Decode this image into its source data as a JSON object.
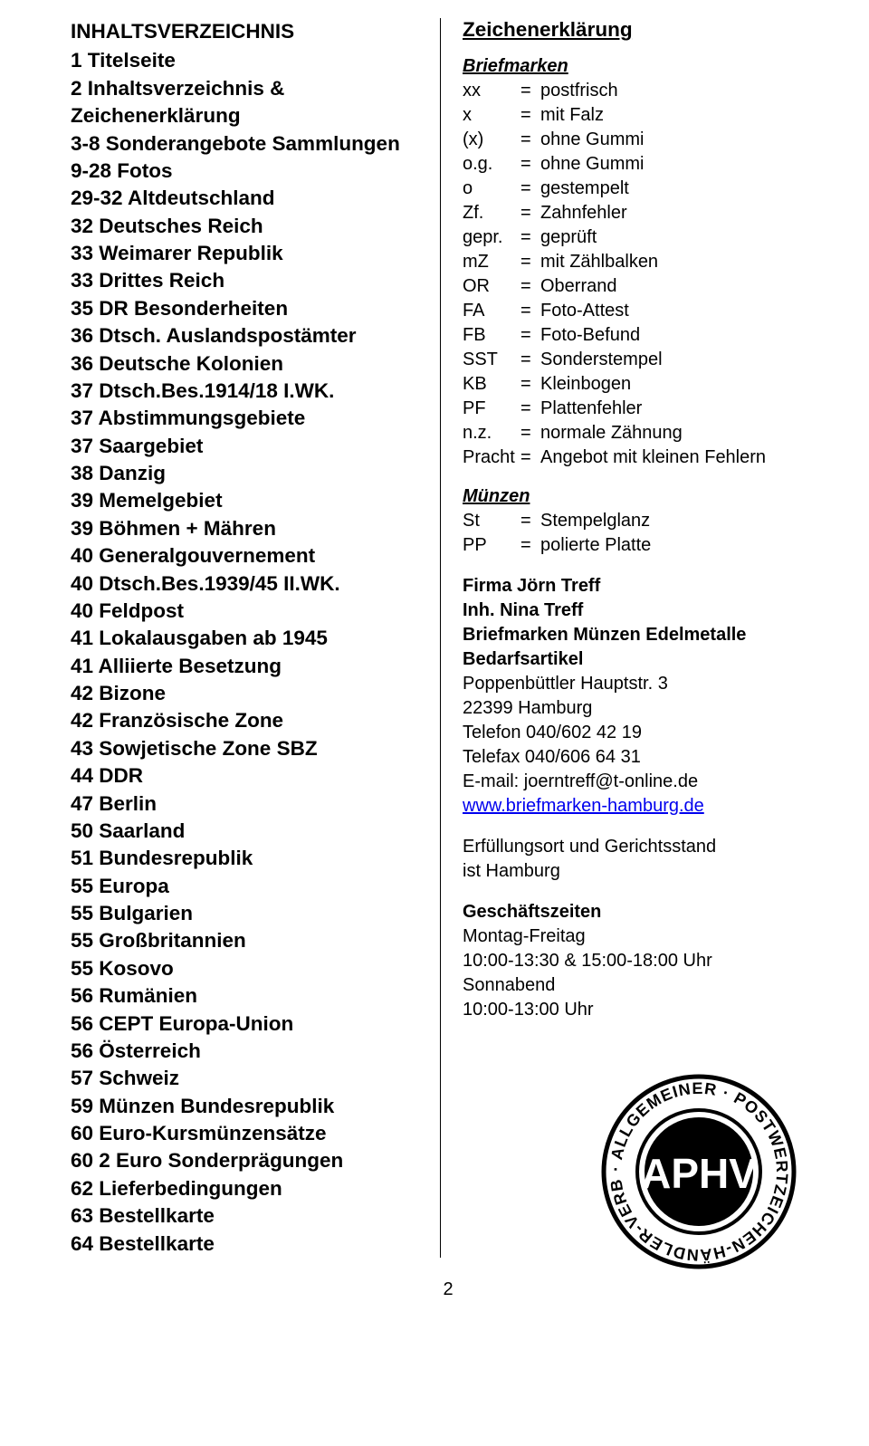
{
  "left": {
    "heading": "INHALTSVERZEICHNIS",
    "lines": [
      "1 Titelseite",
      "2 Inhaltsverzeichnis & Zeichenerklärung",
      "3-8 Sonderangebote Sammlungen",
      "9-28 Fotos",
      "29-32 Altdeutschland",
      "32 Deutsches Reich",
      "33 Weimarer Republik",
      "33 Drittes Reich",
      "35 DR Besonderheiten",
      "36 Dtsch. Auslandspostämter",
      "36 Deutsche Kolonien",
      "37 Dtsch.Bes.1914/18 I.WK.",
      "37 Abstimmungsgebiete",
      "37 Saargebiet",
      "38 Danzig",
      "39 Memelgebiet",
      "39 Böhmen + Mähren",
      "40 Generalgouvernement",
      "40 Dtsch.Bes.1939/45 II.WK.",
      "40 Feldpost",
      "41 Lokalausgaben ab 1945",
      "41 Alliierte Besetzung",
      "42 Bizone",
      "42 Französische Zone",
      "43 Sowjetische Zone SBZ",
      "44 DDR",
      "47 Berlin",
      "50 Saarland",
      "51 Bundesrepublik",
      "55 Europa",
      "55 Bulgarien",
      "55 Großbritannien",
      "55 Kosovo",
      "56 Rumänien",
      "56 CEPT Europa-Union",
      "56 Österreich",
      "57 Schweiz",
      "59 Münzen Bundesrepublik",
      "60 Euro-Kursmünzensätze",
      "60 2 Euro Sonderprägungen",
      "62 Lieferbedingungen",
      "63 Bestellkarte",
      "64 Bestellkarte"
    ]
  },
  "right": {
    "heading": "Zeichenerklärung",
    "briefmarken_heading": "Briefmarken",
    "briefmarken": [
      {
        "abbr": "xx",
        "def": "postfrisch"
      },
      {
        "abbr": "x",
        "def": "mit Falz"
      },
      {
        "abbr": "(x)",
        "def": "ohne Gummi"
      },
      {
        "abbr": "o.g.",
        "def": "ohne Gummi"
      },
      {
        "abbr": "o",
        "def": "gestempelt"
      },
      {
        "abbr": "Zf.",
        "def": "Zahnfehler"
      },
      {
        "abbr": "gepr.",
        "def": "geprüft"
      },
      {
        "abbr": "mZ",
        "def": "mit Zählbalken"
      },
      {
        "abbr": "OR",
        "def": "Oberrand"
      },
      {
        "abbr": "FA",
        "def": "Foto-Attest"
      },
      {
        "abbr": "FB",
        "def": "Foto-Befund"
      },
      {
        "abbr": "SST",
        "def": "Sonderstempel"
      },
      {
        "abbr": "KB",
        "def": "Kleinbogen"
      },
      {
        "abbr": "PF",
        "def": "Plattenfehler"
      },
      {
        "abbr": "n.z.",
        "def": "normale Zähnung"
      },
      {
        "abbr": "Pracht",
        "def": "Angebot mit kleinen Fehlern"
      }
    ],
    "muenzen_heading": "Münzen",
    "muenzen": [
      {
        "abbr": "St",
        "def": "Stempelglanz"
      },
      {
        "abbr": "PP",
        "def": "polierte Platte"
      }
    ],
    "firm_name": "Firma Jörn Treff",
    "owner": "Inh. Nina Treff",
    "tagline": "Briefmarken Münzen Edelmetalle Bedarfsartikel",
    "address1": "Poppenbüttler Hauptstr. 3",
    "address2": "22399 Hamburg",
    "phone": "Telefon 040/602 42 19",
    "fax": "Telefax 040/606 64 31",
    "email_label": "E-mail: ",
    "email": "joerntreff@t-online.de",
    "website": "www.briefmarken-hamburg.de",
    "jurisdiction1": "Erfüllungsort und Gerichtsstand",
    "jurisdiction2": "ist Hamburg",
    "hours_heading": "Geschäftszeiten",
    "hours1": "Montag-Freitag",
    "hours2": "10:00-13:30 & 15:00-18:00 Uhr",
    "hours3": "Sonnabend",
    "hours4": "10:00-13:00 Uhr"
  },
  "seal": {
    "outer_text": "· ALLGEMEINER · POSTWERTZEICHEN-HÄNDLER-VERBAND-EV",
    "center_text": "APHV"
  },
  "page_number": "2",
  "colors": {
    "text": "#000000",
    "background": "#ffffff",
    "link": "#0000ee"
  }
}
